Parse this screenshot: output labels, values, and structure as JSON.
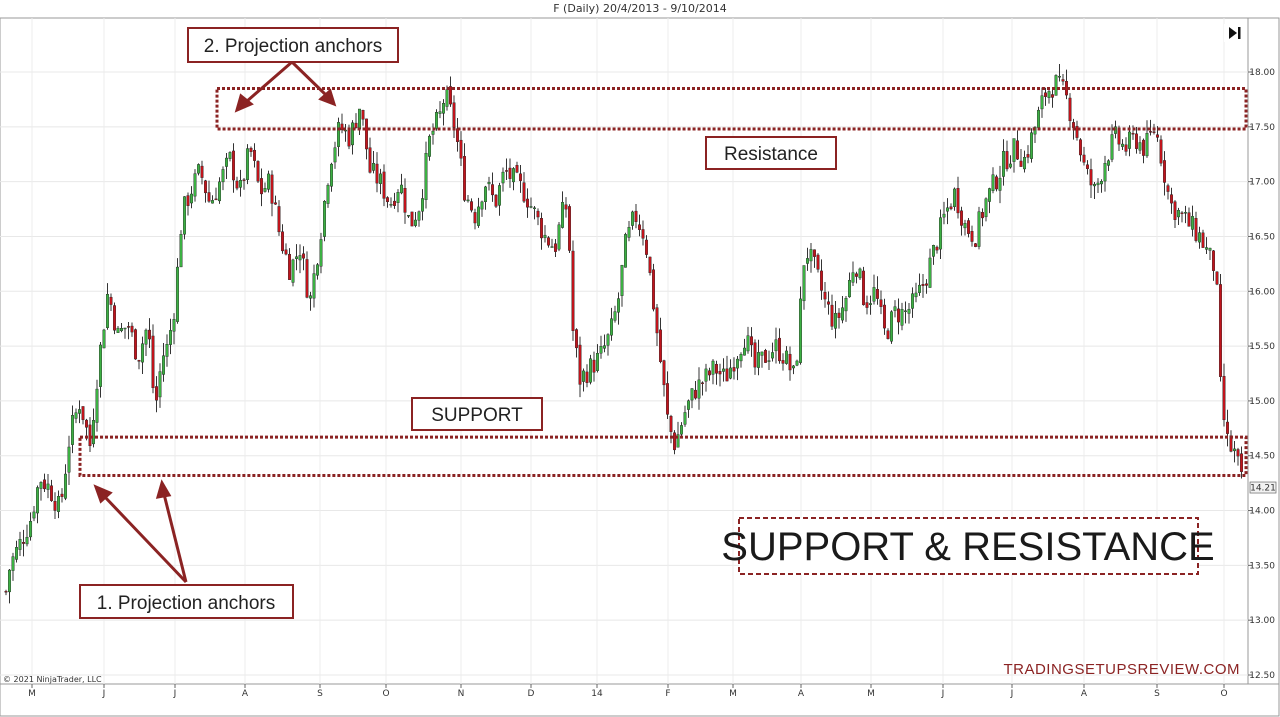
{
  "chart_data": {
    "type": "candlestick",
    "title": "F (Daily)  20/4/2013 - 9/10/2014",
    "copyright": "© 2021 NinjaTrader, LLC",
    "watermark": "TRADINGSETUPSREVIEW.COM",
    "heading": "SUPPORT & RESISTANCE",
    "ylim": [
      12.5,
      18.2
    ],
    "y_ticks": [
      "18.00",
      "17.50",
      "17.00",
      "16.50",
      "16.00",
      "15.50",
      "15.00",
      "14.50",
      "14.00",
      "13.50",
      "13.00",
      "12.50"
    ],
    "x_ticks": [
      "M",
      "J",
      "J",
      "A",
      "S",
      "O",
      "N",
      "D",
      "14",
      "F",
      "M",
      "A",
      "M",
      "J",
      "J",
      "A",
      "S",
      "O"
    ],
    "last_price_label": "14.21",
    "last_price": 14.21,
    "colors": {
      "up": "#3cb043",
      "down": "#c0141c",
      "wick": "#000000",
      "zone": "#8b2323"
    },
    "resistance_zone": [
      17.48,
      17.85
    ],
    "support_zone": [
      14.32,
      14.67
    ],
    "price_path": [
      [
        0,
        12.9
      ],
      [
        10,
        13.5
      ],
      [
        20,
        13.7
      ],
      [
        30,
        13.9
      ],
      [
        40,
        14.3
      ],
      [
        50,
        14.2
      ],
      [
        60,
        14.0
      ],
      [
        70,
        14.7
      ],
      [
        80,
        15.0
      ],
      [
        90,
        14.6
      ],
      [
        98,
        15.3
      ],
      [
        108,
        16.0
      ],
      [
        118,
        15.6
      ],
      [
        128,
        15.7
      ],
      [
        138,
        15.4
      ],
      [
        148,
        15.7
      ],
      [
        155,
        14.9
      ],
      [
        162,
        15.4
      ],
      [
        168,
        15.5
      ],
      [
        175,
        15.9
      ],
      [
        182,
        16.7
      ],
      [
        190,
        16.9
      ],
      [
        200,
        17.1
      ],
      [
        210,
        16.8
      ],
      [
        220,
        17.0
      ],
      [
        230,
        17.2
      ],
      [
        240,
        16.9
      ],
      [
        250,
        17.3
      ],
      [
        260,
        16.9
      ],
      [
        270,
        17.0
      ],
      [
        280,
        16.5
      ],
      [
        290,
        16.2
      ],
      [
        300,
        16.4
      ],
      [
        310,
        15.9
      ],
      [
        320,
        16.5
      ],
      [
        330,
        17.2
      ],
      [
        340,
        17.5
      ],
      [
        350,
        17.4
      ],
      [
        360,
        17.7
      ],
      [
        370,
        17.1
      ],
      [
        380,
        17.0
      ],
      [
        390,
        16.8
      ],
      [
        400,
        17.0
      ],
      [
        410,
        16.6
      ],
      [
        420,
        16.8
      ],
      [
        430,
        17.4
      ],
      [
        440,
        17.6
      ],
      [
        445,
        17.8
      ],
      [
        455,
        17.5
      ],
      [
        465,
        16.9
      ],
      [
        475,
        16.7
      ],
      [
        485,
        17.0
      ],
      [
        495,
        16.8
      ],
      [
        505,
        17.1
      ],
      [
        515,
        17.0
      ],
      [
        525,
        16.9
      ],
      [
        535,
        16.7
      ],
      [
        545,
        16.5
      ],
      [
        555,
        16.4
      ],
      [
        562,
        16.7
      ],
      [
        568,
        16.8
      ],
      [
        572,
        15.7
      ],
      [
        580,
        15.2
      ],
      [
        590,
        15.3
      ],
      [
        600,
        15.4
      ],
      [
        610,
        15.6
      ],
      [
        618,
        15.9
      ],
      [
        625,
        16.4
      ],
      [
        635,
        16.7
      ],
      [
        645,
        16.5
      ],
      [
        652,
        16.0
      ],
      [
        660,
        15.4
      ],
      [
        668,
        14.8
      ],
      [
        675,
        14.6
      ],
      [
        685,
        14.9
      ],
      [
        695,
        15.1
      ],
      [
        705,
        15.2
      ],
      [
        715,
        15.3
      ],
      [
        725,
        15.2
      ],
      [
        735,
        15.4
      ],
      [
        745,
        15.6
      ],
      [
        755,
        15.3
      ],
      [
        765,
        15.4
      ],
      [
        775,
        15.5
      ],
      [
        785,
        15.4
      ],
      [
        795,
        15.2
      ],
      [
        805,
        16.4
      ],
      [
        815,
        16.2
      ],
      [
        825,
        15.9
      ],
      [
        835,
        15.7
      ],
      [
        845,
        15.9
      ],
      [
        855,
        16.3
      ],
      [
        865,
        15.9
      ],
      [
        875,
        16.0
      ],
      [
        885,
        15.6
      ],
      [
        895,
        15.8
      ],
      [
        905,
        15.8
      ],
      [
        915,
        15.9
      ],
      [
        925,
        16.1
      ],
      [
        935,
        16.4
      ],
      [
        945,
        16.7
      ],
      [
        955,
        16.9
      ],
      [
        965,
        16.6
      ],
      [
        975,
        16.5
      ],
      [
        985,
        16.8
      ],
      [
        995,
        17.0
      ],
      [
        1005,
        17.2
      ],
      [
        1015,
        17.3
      ],
      [
        1025,
        17.2
      ],
      [
        1035,
        17.5
      ],
      [
        1045,
        17.8
      ],
      [
        1055,
        17.9
      ],
      [
        1065,
        17.8
      ],
      [
        1075,
        17.5
      ],
      [
        1085,
        17.1
      ],
      [
        1095,
        16.9
      ],
      [
        1105,
        17.2
      ],
      [
        1115,
        17.4
      ],
      [
        1125,
        17.3
      ],
      [
        1135,
        17.4
      ],
      [
        1145,
        17.3
      ],
      [
        1155,
        17.5
      ],
      [
        1162,
        17.2
      ],
      [
        1170,
        16.8
      ],
      [
        1180,
        16.7
      ],
      [
        1190,
        16.6
      ],
      [
        1200,
        16.5
      ],
      [
        1210,
        16.3
      ],
      [
        1216,
        16.2
      ],
      [
        1221,
        15.0
      ],
      [
        1228,
        14.6
      ],
      [
        1236,
        14.5
      ],
      [
        1243,
        14.2
      ]
    ]
  },
  "annotations": {
    "projection_anchors_2": "2. Projection anchors",
    "projection_anchors_1": "1. Projection anchors",
    "resistance": "Resistance",
    "support": "SUPPORT"
  },
  "controls": {
    "skip_end_icon": "skip-to-end-icon"
  }
}
